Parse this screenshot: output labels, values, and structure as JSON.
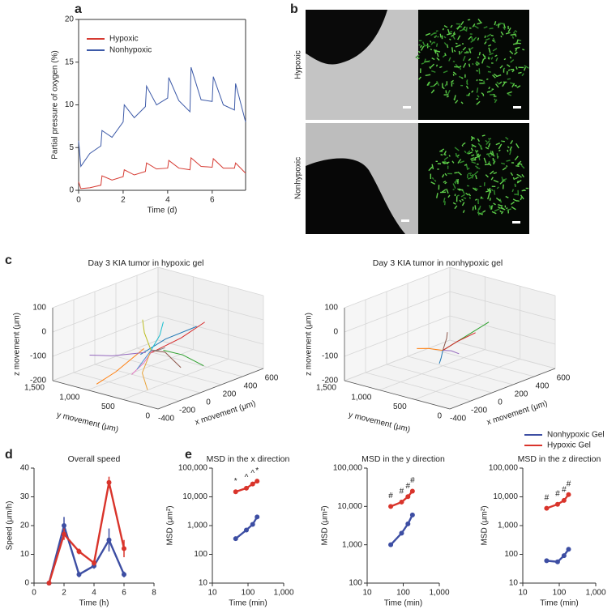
{
  "panel_labels": [
    "a",
    "b",
    "c",
    "d",
    "e"
  ],
  "images": {
    "row_labels": [
      "Hypoxic",
      "Nonhypoxic"
    ]
  },
  "chart_data": [
    {
      "type": "line",
      "xlabel": "Time (d)",
      "ylabel": "Partial pressure of oxygen (%)",
      "x": [
        0,
        0.1,
        0.5,
        1,
        1.05,
        1.5,
        2,
        2.05,
        2.5,
        3,
        3.05,
        3.5,
        4,
        4.05,
        4.5,
        5,
        5.05,
        5.5,
        6,
        6.05,
        6.5,
        7,
        7.05,
        7.5
      ],
      "xlim": [
        0,
        7.5
      ],
      "xticks": [
        0,
        2,
        4,
        6
      ],
      "ylim": [
        0,
        20
      ],
      "yticks": [
        0,
        5,
        10,
        15,
        20
      ],
      "legend": "upper left",
      "series": [
        {
          "name": "Hypoxic",
          "color": "#d63a32",
          "values": [
            1.0,
            0.2,
            0.3,
            0.6,
            1.7,
            1.2,
            1.6,
            2.4,
            1.8,
            2.2,
            3.2,
            2.5,
            2.6,
            3.5,
            2.6,
            2.4,
            3.8,
            2.8,
            2.7,
            3.7,
            2.6,
            2.6,
            3.2,
            2.0
          ]
        },
        {
          "name": "Nonhypoxic",
          "color": "#3d5aa8",
          "values": [
            5.8,
            2.8,
            4.3,
            5.2,
            7.0,
            6.2,
            8.0,
            10.0,
            8.5,
            9.8,
            12.2,
            10.0,
            10.8,
            13.2,
            10.5,
            9.2,
            14.4,
            10.6,
            10.4,
            13.3,
            10.0,
            9.4,
            12.5,
            8.0
          ]
        }
      ]
    },
    {
      "type": "line3d",
      "title": "Day 3 KIA tumor in hypoxic gel",
      "xlabel": "x movement (μm)",
      "ylabel": "y movement (μm)",
      "zlabel": "z movement (μm)",
      "xlim": [
        -400,
        600
      ],
      "xticks": [
        -400,
        -200,
        0,
        200,
        400,
        600
      ],
      "ylim": [
        0,
        1500
      ],
      "yticks": [
        0,
        500,
        {
          "value": 1000,
          "label": "1,000"
        },
        {
          "value": 1500,
          "label": "1,500"
        }
      ],
      "zlim": [
        -200,
        100
      ],
      "zticks": [
        -200,
        -100,
        0,
        100
      ],
      "tracks": [
        {
          "color": "#1f77b4",
          "x": [
            -100,
            150,
            420
          ],
          "y": [
            700,
            720,
            680
          ],
          "z": [
            -80,
            -60,
            -50
          ]
        },
        {
          "color": "#ff7f0e",
          "x": [
            0,
            -200,
            -350
          ],
          "y": [
            800,
            900,
            950
          ],
          "z": [
            -80,
            -150,
            -180
          ]
        },
        {
          "color": "#2ca02c",
          "x": [
            50,
            200,
            300
          ],
          "y": [
            600,
            550,
            400
          ],
          "z": [
            -80,
            -120,
            -170
          ]
        },
        {
          "color": "#d62728",
          "x": [
            0,
            300,
            550
          ],
          "y": [
            700,
            720,
            760
          ],
          "z": [
            -90,
            -80,
            -60
          ]
        },
        {
          "color": "#9467bd",
          "x": [
            -50,
            -300,
            -450
          ],
          "y": [
            700,
            800,
            900
          ],
          "z": [
            -80,
            -60,
            -40
          ]
        },
        {
          "color": "#8c564b",
          "x": [
            0,
            100,
            150
          ],
          "y": [
            700,
            650,
            500
          ],
          "z": [
            -80,
            -100,
            -160
          ]
        },
        {
          "color": "#e377c2",
          "x": [
            20,
            -100,
            -250
          ],
          "y": [
            700,
            650,
            600
          ],
          "z": [
            -80,
            -110,
            -130
          ]
        },
        {
          "color": "#bcbd22",
          "x": [
            0,
            -50,
            -80
          ],
          "y": [
            700,
            720,
            700
          ],
          "z": [
            -80,
            0,
            60
          ]
        },
        {
          "color": "#17becf",
          "x": [
            0,
            150,
            250
          ],
          "y": [
            700,
            800,
            900
          ],
          "z": [
            -80,
            -50,
            -20
          ]
        },
        {
          "color": "#e8a33a",
          "x": [
            0,
            -150,
            -200
          ],
          "y": [
            700,
            600,
            450
          ],
          "z": [
            -80,
            -140,
            -190
          ]
        },
        {
          "color": "#7f7f7f",
          "x": [
            0,
            100,
            200
          ],
          "y": [
            700,
            750,
            800
          ],
          "z": [
            -80,
            -100,
            -110
          ]
        },
        {
          "color": "#4a90d0",
          "x": [
            0,
            -200,
            -400
          ],
          "y": [
            700,
            500,
            300
          ],
          "z": [
            -80,
            -70,
            -60
          ]
        }
      ]
    },
    {
      "type": "line3d",
      "title": "Day 3 KIA tumor in nonhypoxic gel",
      "xlabel": "x movement (μm)",
      "ylabel": "y movement (μm)",
      "zlabel": "z movement (μm)",
      "xlim": [
        -400,
        600
      ],
      "xticks": [
        -400,
        -200,
        0,
        200,
        400,
        600
      ],
      "ylim": [
        0,
        1500
      ],
      "yticks": [
        0,
        500,
        {
          "value": 1000,
          "label": "1,000"
        },
        {
          "value": 1500,
          "label": "1,500"
        }
      ],
      "zlim": [
        -200,
        100
      ],
      "zticks": [
        -200,
        -100,
        0,
        100
      ],
      "tracks": [
        {
          "color": "#2ca02c",
          "x": [
            0,
            200,
            450
          ],
          "y": [
            700,
            700,
            720
          ],
          "z": [
            -80,
            -60,
            -40
          ]
        },
        {
          "color": "#d62728",
          "x": [
            0,
            150,
            350
          ],
          "y": [
            700,
            720,
            760
          ],
          "z": [
            -80,
            -70,
            -70
          ]
        },
        {
          "color": "#ff7f0e",
          "x": [
            0,
            -100,
            -180
          ],
          "y": [
            700,
            760,
            800
          ],
          "z": [
            -80,
            -60,
            -50
          ]
        },
        {
          "color": "#1f77b4",
          "x": [
            0,
            -50,
            -100
          ],
          "y": [
            700,
            650,
            600
          ],
          "z": [
            -80,
            -100,
            -110
          ]
        },
        {
          "color": "#9467bd",
          "x": [
            0,
            80,
            120
          ],
          "y": [
            700,
            700,
            650
          ],
          "z": [
            -80,
            -95,
            -110
          ]
        },
        {
          "color": "#8c564b",
          "x": [
            0,
            50,
            70
          ],
          "y": [
            700,
            720,
            740
          ],
          "z": [
            -80,
            -40,
            -20
          ]
        }
      ]
    },
    {
      "type": "line",
      "title": "Overall speed",
      "xlabel": "Time (h)",
      "ylabel": "Speed (μm/h)",
      "x": [
        1,
        2,
        3,
        4,
        5,
        6
      ],
      "xlim": [
        0,
        8
      ],
      "xticks": [
        0,
        2,
        4,
        6,
        8
      ],
      "ylim": [
        0,
        40
      ],
      "yticks": [
        0,
        10,
        20,
        30,
        40
      ],
      "series": [
        {
          "color": "#3d4ea3",
          "values": [
            0,
            20,
            3,
            6,
            15,
            3
          ],
          "errors": [
            0,
            3,
            1,
            1,
            4,
            1
          ]
        },
        {
          "color": "#d9342b",
          "values": [
            0,
            17,
            11,
            7,
            35,
            12
          ],
          "errors": [
            0,
            2,
            1,
            1,
            2,
            3
          ]
        }
      ]
    },
    {
      "type": "line",
      "xscale": "log",
      "yscale": "log",
      "title": "MSD in the x direction",
      "xlabel": "Time (min)",
      "ylabel": "MSD (μm²)",
      "x": [
        45,
        90,
        135,
        180
      ],
      "xlim": [
        10,
        1000
      ],
      "xticks": [
        10,
        100,
        {
          "value": 1000,
          "label": "1,000"
        }
      ],
      "ylim": [
        10,
        100000
      ],
      "yticks": [
        10,
        100,
        {
          "value": 1000,
          "label": "1,000"
        },
        {
          "value": 10000,
          "label": "10,000"
        },
        {
          "value": 100000,
          "label": "100,000"
        }
      ],
      "annotations": [
        "*",
        "^",
        "^",
        "*"
      ],
      "series": [
        {
          "color": "#3d4ea3",
          "values": [
            350,
            700,
            1100,
            2000
          ]
        },
        {
          "color": "#d9342b",
          "values": [
            15000,
            20000,
            28000,
            35000
          ]
        }
      ]
    },
    {
      "type": "line",
      "xscale": "log",
      "yscale": "log",
      "title": "MSD in the y direction",
      "xlabel": "Time (min)",
      "ylabel": "MSD (μm²)",
      "x": [
        45,
        90,
        135,
        180
      ],
      "xlim": [
        10,
        1000
      ],
      "xticks": [
        10,
        100,
        {
          "value": 1000,
          "label": "1,000"
        }
      ],
      "ylim": [
        100,
        100000
      ],
      "yticks": [
        100,
        {
          "value": 1000,
          "label": "1,000"
        },
        {
          "value": 10000,
          "label": "10,000"
        },
        {
          "value": 100000,
          "label": "100,000"
        }
      ],
      "annotations": [
        "#",
        "#",
        "#",
        "#"
      ],
      "series": [
        {
          "color": "#3d4ea3",
          "values": [
            1000,
            2000,
            3500,
            6000
          ]
        },
        {
          "color": "#d9342b",
          "values": [
            10000,
            13000,
            18000,
            25000
          ]
        }
      ]
    },
    {
      "type": "line",
      "xscale": "log",
      "yscale": "log",
      "title": "MSD in the z direction",
      "xlabel": "Time (min)",
      "ylabel": "MSD (μm²)",
      "x": [
        45,
        90,
        135,
        180
      ],
      "xlim": [
        10,
        1000
      ],
      "xticks": [
        10,
        100,
        {
          "value": 1000,
          "label": "1,000"
        }
      ],
      "ylim": [
        10,
        100000
      ],
      "yticks": [
        10,
        100,
        {
          "value": 1000,
          "label": "1,000"
        },
        {
          "value": 10000,
          "label": "10,000"
        },
        {
          "value": 100000,
          "label": "100,000"
        }
      ],
      "annotations": [
        "#",
        "#",
        "#",
        "#"
      ],
      "legend": "above",
      "series": [
        {
          "name": "Nonhypoxic Gel",
          "color": "#3d4ea3",
          "values": [
            60,
            55,
            90,
            150
          ]
        },
        {
          "name": "Hypoxic Gel",
          "color": "#d9342b",
          "values": [
            4000,
            5500,
            7500,
            12000
          ]
        }
      ]
    }
  ]
}
